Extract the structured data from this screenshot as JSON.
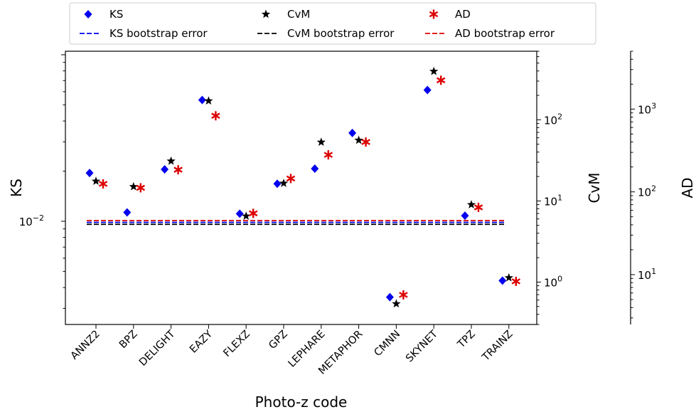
{
  "chart_data": {
    "type": "scatter",
    "xlabel": "Photo-z code",
    "categories": [
      "ANNZ2",
      "BPZ",
      "DELIGHT",
      "EAZY",
      "FLEXZ",
      "GPZ",
      "LEPHARE",
      "METAPHOR",
      "CMNN",
      "SKYNET",
      "TPZ",
      "TRAINZ"
    ],
    "axes": {
      "ks": {
        "label": "KS",
        "scale": "log",
        "range": [
          0.0024,
          0.105
        ],
        "major_ticks": [
          {
            "v": 0.01,
            "label": "10"
          }
        ],
        "exp": "−2"
      },
      "cvm": {
        "label": "CvM",
        "scale": "log",
        "range": [
          0.3,
          700
        ],
        "major_ticks": [
          {
            "v": 1,
            "label": "10",
            "exp": "0"
          },
          {
            "v": 10,
            "label": "10",
            "exp": "1"
          },
          {
            "v": 100,
            "label": "10",
            "exp": "2"
          }
        ]
      },
      "ad": {
        "label": "AD",
        "scale": "log",
        "range": [
          2.5,
          5000
        ],
        "major_ticks": [
          {
            "v": 10,
            "label": "10",
            "exp": "1"
          },
          {
            "v": 100,
            "label": "10",
            "exp": "2"
          },
          {
            "v": 1000,
            "label": "10",
            "exp": "3"
          }
        ]
      }
    },
    "series": [
      {
        "name": "KS",
        "axis": "ks",
        "marker": "diamond",
        "color": "#0000ee",
        "values": [
          0.0195,
          0.0113,
          0.0205,
          0.0535,
          0.0111,
          0.0168,
          0.0207,
          0.0339,
          0.0035,
          0.0614,
          0.0108,
          0.0044
        ]
      },
      {
        "name": "CvM",
        "axis": "cvm",
        "marker": "star",
        "color": "#000000",
        "values": [
          17.5,
          15.0,
          31.0,
          171,
          6.5,
          16.5,
          53,
          56,
          0.54,
          396,
          9.0,
          1.13
        ]
      },
      {
        "name": "AD",
        "axis": "ad",
        "marker": "asterisk",
        "color": "#dd0000",
        "values": [
          125,
          112,
          185,
          830,
          55,
          145,
          280,
          400,
          5.7,
          2230,
          65,
          8.3
        ]
      }
    ],
    "bootstrap_errors": [
      {
        "name": "KS bootstrap error",
        "axis": "ks",
        "value": 0.00985,
        "color": "#0000ee"
      },
      {
        "name": "CvM bootstrap error",
        "axis": "cvm",
        "value": 5.15,
        "color": "#000000"
      },
      {
        "name": "AD bootstrap error",
        "axis": "ad",
        "value": 45,
        "color": "#dd0000"
      }
    ],
    "legend": {
      "placement": "top",
      "entries": [
        "KS",
        "CvM",
        "AD",
        "KS bootstrap error",
        "CvM bootstrap error",
        "AD bootstrap error"
      ]
    },
    "grid": false
  }
}
